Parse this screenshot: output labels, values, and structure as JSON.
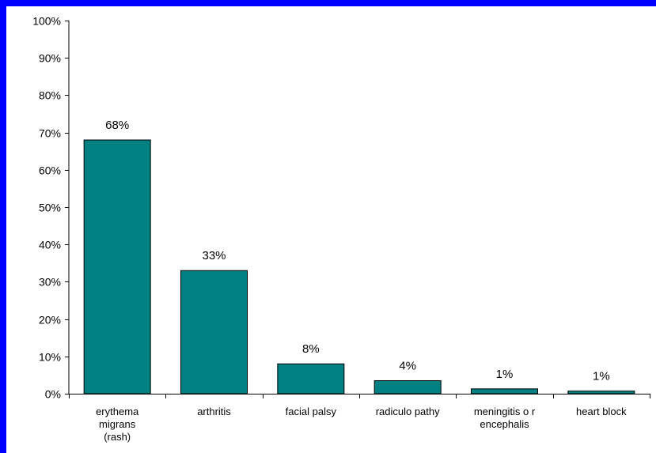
{
  "chart_data": {
    "type": "bar",
    "title": "",
    "xlabel": "",
    "ylabel": "",
    "ylim": [
      0,
      100
    ],
    "y_ticks": [
      0,
      10,
      20,
      30,
      40,
      50,
      60,
      70,
      80,
      90,
      100
    ],
    "y_tick_labels": [
      "0%",
      "10%",
      "20%",
      "30%",
      "40%",
      "50%",
      "60%",
      "70%",
      "80%",
      "90%",
      "100%"
    ],
    "categories": [
      [
        "erythema",
        "migrans",
        "(rash)"
      ],
      [
        "arthritis"
      ],
      [
        "facial palsy"
      ],
      [
        "radiculo pathy"
      ],
      [
        "meningitis o r",
        "encephalis"
      ],
      [
        "heart block"
      ]
    ],
    "values": [
      68,
      33,
      8,
      3.5,
      1.3,
      0.7
    ],
    "data_labels": [
      "68%",
      "33%",
      "8%",
      "4%",
      "1%",
      "1%"
    ],
    "bar_color": "#008080",
    "background_color": "#ffffff",
    "frame_color": "#0000ff",
    "grid": false,
    "legend": "none"
  }
}
